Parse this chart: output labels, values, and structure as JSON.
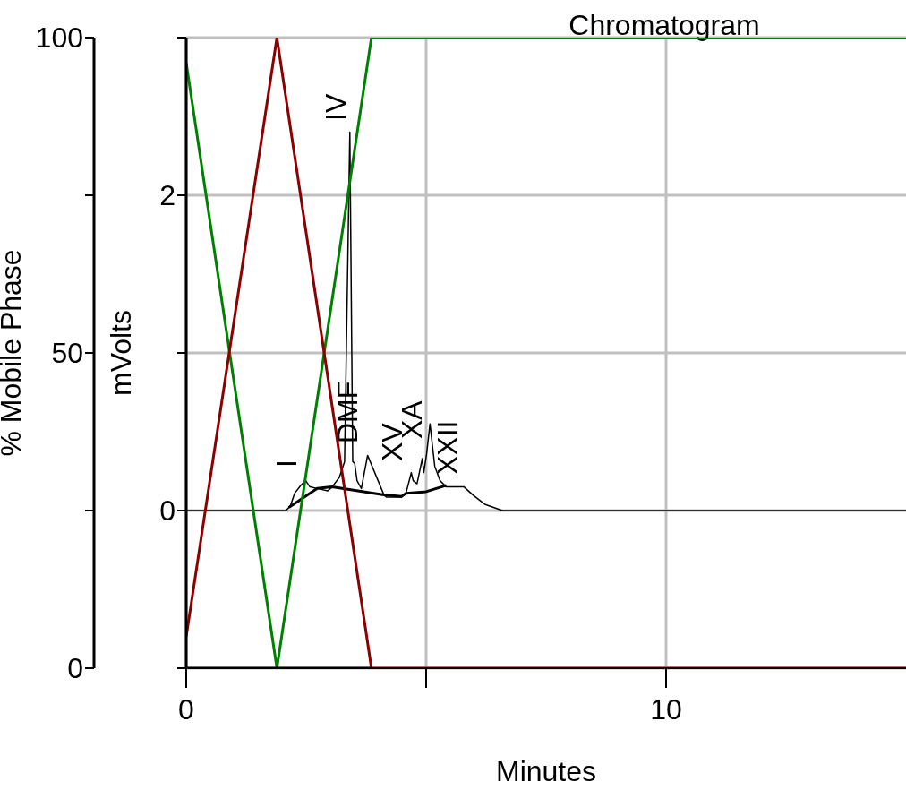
{
  "chart_data": {
    "type": "line",
    "title": "Chromatogram",
    "xlabel": "Minutes",
    "ylabel": "mVolts",
    "y2label": "% Mobile Phase",
    "xlim": [
      0,
      15
    ],
    "xticks": [
      0,
      {
        "value": 5,
        "label": null
      },
      10
    ],
    "ylim": [
      -1,
      3
    ],
    "yticks": [
      {
        "value": -1,
        "label": null
      },
      0,
      {
        "value": 1,
        "label": null
      },
      2,
      {
        "value": 3,
        "label": null
      }
    ],
    "y2lim": [
      0,
      100
    ],
    "y2ticks": [
      0,
      {
        "value": 25,
        "label": null
      },
      50,
      {
        "value": 75,
        "label": null
      },
      100
    ],
    "grid": true,
    "marker": "none",
    "line_style": "solid",
    "series": [
      {
        "color": "#000000",
        "x": [
          0,
          2.08,
          2.17,
          2.26,
          2.39,
          2.49,
          2.58,
          2.73,
          2.95,
          3.04,
          3.19,
          3.3,
          3.41,
          3.47,
          3.51,
          3.56,
          3.65,
          3.78,
          4.12,
          4.17,
          4.49,
          4.58,
          4.69,
          4.73,
          4.81,
          4.92,
          4.95,
          5.01,
          5.08,
          5.18,
          5.29,
          5.42,
          5.79,
          5.97,
          6.22,
          6.59,
          15
        ],
        "values": [
          0,
          0,
          0.03,
          0.11,
          0.16,
          0.19,
          0.15,
          0.14,
          0.125,
          0.15,
          0.21,
          0.31,
          2.4,
          0.31,
          0.3,
          0.19,
          0.14,
          0.35,
          0.1,
          0.085,
          0.085,
          0.11,
          0.24,
          0.19,
          0.17,
          0.33,
          0.24,
          0.36,
          0.55,
          0.28,
          0.19,
          0.15,
          0.15,
          0.1,
          0.04,
          0,
          0
        ]
      },
      {
        "color": "#000000",
        "x": [
          2.14,
          2.73,
          3.04,
          4.12,
          4.49,
          4.58,
          5.0,
          5.42
        ],
        "values": [
          0.02,
          0.14,
          0.15,
          0.1,
          0.09,
          0.11,
          0.12,
          0.16
        ]
      },
      {
        "color": "#008000",
        "axis": "y2",
        "x": [
          0,
          1.89,
          3.86,
          15
        ],
        "values": [
          96,
          0,
          100,
          100
        ]
      },
      {
        "color": "#8b0000",
        "axis": "y2",
        "x": [
          0,
          1.89,
          3.86,
          15
        ],
        "values": [
          5,
          100,
          0,
          0
        ]
      },
      {
        "color": "#000000",
        "axis": "y2",
        "x": [
          0,
          3.86
        ],
        "values": [
          0,
          0
        ]
      }
    ],
    "annotations": [
      "I",
      "DMF",
      "IV",
      "XV",
      "XA",
      "XXII"
    ]
  }
}
